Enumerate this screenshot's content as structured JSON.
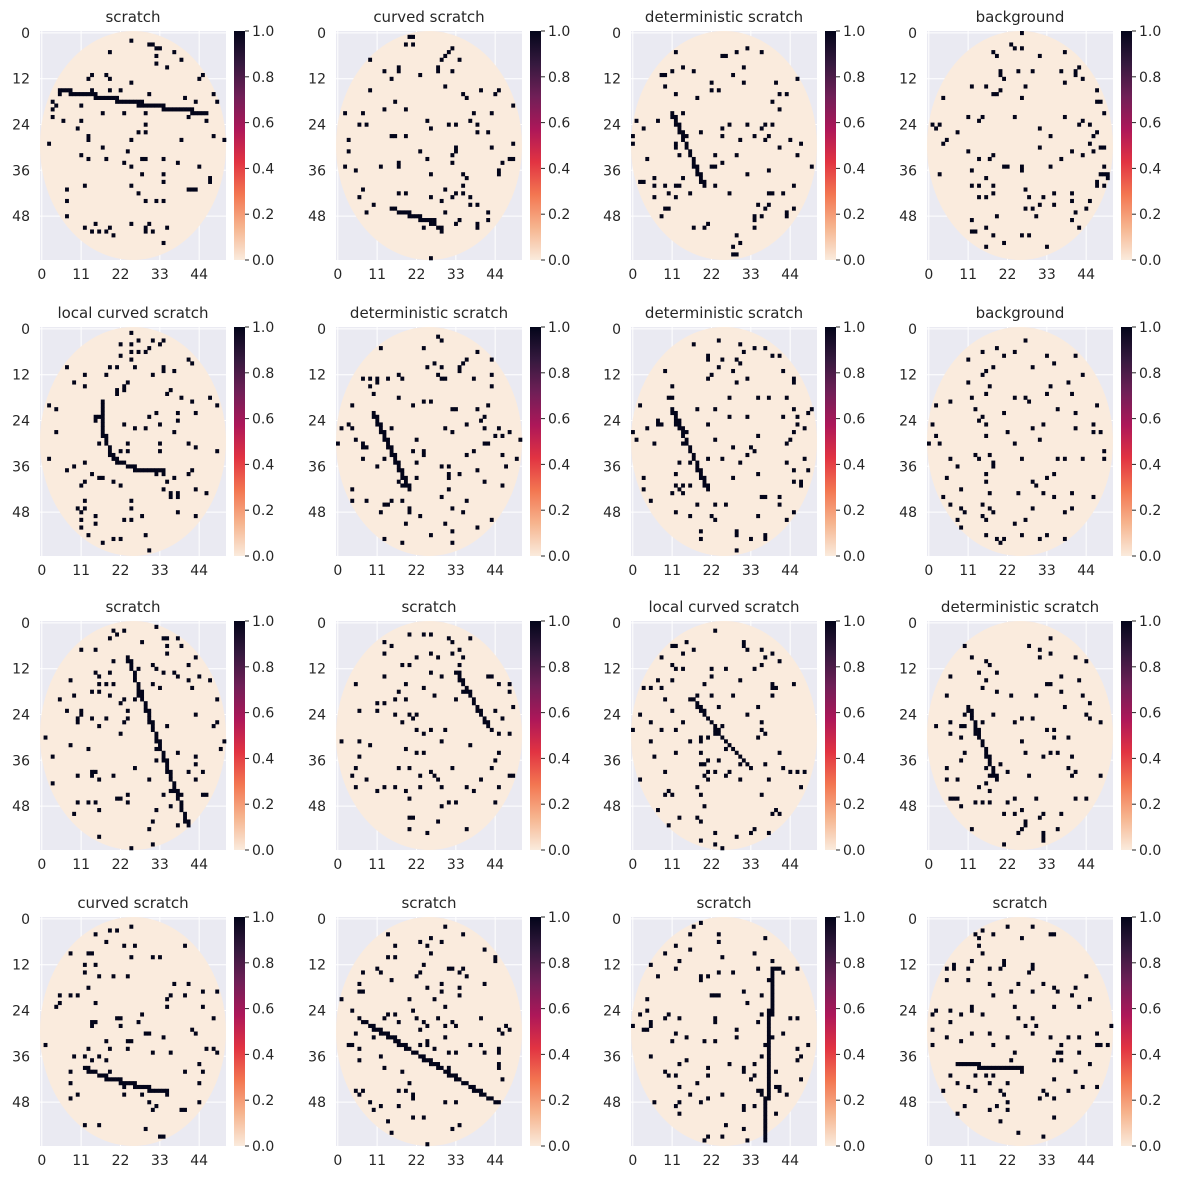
{
  "colorbar_ticks": [
    "0.0",
    "0.2",
    "0.4",
    "0.6",
    "0.8",
    "1.0"
  ],
  "colors": {
    "plot_background": "#eaeaf2",
    "grid": "#ffffff",
    "wafer": "#faebdd",
    "defect": "#03051a",
    "colormap_rocket_r": [
      "#faebdd",
      "#f6b48e",
      "#f37651",
      "#e13342",
      "#ad1759",
      "#701f57",
      "#35193e",
      "#03051a"
    ]
  },
  "chart_data": [
    {
      "type": "heatmap",
      "title": "scratch",
      "xticks": [
        "0",
        "11",
        "22",
        "33",
        "44"
      ],
      "yticks": [
        "0",
        "12",
        "24",
        "36",
        "48"
      ],
      "grid_shape": [
        60,
        52
      ],
      "value_range": [
        0,
        1
      ],
      "wafer_region": "ellipse filling the grid, value 0",
      "defect_pattern": {
        "kind": "line",
        "points": [
          [
            5,
            15
          ],
          [
            15,
            16.5
          ],
          [
            30,
            19
          ],
          [
            46,
            21
          ]
        ]
      },
      "noise_pixel_count": 95
    },
    {
      "type": "heatmap",
      "title": "curved scratch",
      "xticks": [
        "0",
        "11",
        "22",
        "33",
        "44"
      ],
      "yticks": [
        "0",
        "12",
        "24",
        "36",
        "48"
      ],
      "grid_shape": [
        60,
        52
      ],
      "value_range": [
        0,
        1
      ],
      "wafer_region": "ellipse filling the grid, value 0",
      "defect_pattern": {
        "kind": "curve",
        "points": [
          [
            15,
            46
          ],
          [
            20,
            47.5
          ],
          [
            26,
            49.5
          ],
          [
            29,
            51.5
          ]
        ]
      },
      "noise_pixel_count": 95
    },
    {
      "type": "heatmap",
      "title": "deterministic scratch",
      "xticks": [
        "0",
        "11",
        "22",
        "33",
        "44"
      ],
      "yticks": [
        "0",
        "12",
        "24",
        "36",
        "48"
      ],
      "grid_shape": [
        60,
        52
      ],
      "value_range": [
        0,
        1
      ],
      "wafer_region": "ellipse filling the grid, value 0",
      "defect_pattern": {
        "kind": "line",
        "points": [
          [
            11,
            21
          ],
          [
            20,
            40
          ]
        ]
      },
      "noise_pixel_count": 100
    },
    {
      "type": "heatmap",
      "title": "background",
      "xticks": [
        "0",
        "11",
        "22",
        "33",
        "44"
      ],
      "yticks": [
        "0",
        "12",
        "24",
        "36",
        "48"
      ],
      "grid_shape": [
        60,
        52
      ],
      "value_range": [
        0,
        1
      ],
      "wafer_region": "ellipse filling the grid, value 0",
      "defect_pattern": {
        "kind": "none",
        "points": []
      },
      "noise_pixel_count": 110
    },
    {
      "type": "heatmap",
      "title": "local curved scratch",
      "xticks": [
        "0",
        "11",
        "22",
        "33",
        "44"
      ],
      "yticks": [
        "0",
        "12",
        "24",
        "36",
        "48"
      ],
      "grid_shape": [
        60,
        52
      ],
      "value_range": [
        0,
        1
      ],
      "wafer_region": "ellipse filling the grid, value 0",
      "defect_pattern": {
        "kind": "curve",
        "points": [
          [
            17,
            20
          ],
          [
            17.5,
            28
          ],
          [
            20,
            34
          ],
          [
            26,
            36.5
          ],
          [
            34,
            37.5
          ]
        ]
      },
      "noise_pixel_count": 110
    },
    {
      "type": "heatmap",
      "title": "deterministic scratch",
      "xticks": [
        "0",
        "11",
        "22",
        "33",
        "44"
      ],
      "yticks": [
        "0",
        "12",
        "24",
        "36",
        "48"
      ],
      "grid_shape": [
        60,
        52
      ],
      "value_range": [
        0,
        1
      ],
      "wafer_region": "ellipse filling the grid, value 0",
      "defect_pattern": {
        "kind": "line",
        "points": [
          [
            10,
            22
          ],
          [
            20,
            42
          ]
        ]
      },
      "noise_pixel_count": 110
    },
    {
      "type": "heatmap",
      "title": "deterministic scratch",
      "xticks": [
        "0",
        "11",
        "22",
        "33",
        "44"
      ],
      "yticks": [
        "0",
        "12",
        "24",
        "36",
        "48"
      ],
      "grid_shape": [
        60,
        52
      ],
      "value_range": [
        0,
        1
      ],
      "wafer_region": "ellipse filling the grid, value 0",
      "defect_pattern": {
        "kind": "line",
        "points": [
          [
            11,
            21
          ],
          [
            21,
            42
          ]
        ]
      },
      "noise_pixel_count": 110
    },
    {
      "type": "heatmap",
      "title": "background",
      "xticks": [
        "0",
        "11",
        "22",
        "33",
        "44"
      ],
      "yticks": [
        "0",
        "12",
        "24",
        "36",
        "48"
      ],
      "grid_shape": [
        60,
        52
      ],
      "value_range": [
        0,
        1
      ],
      "wafer_region": "ellipse filling the grid, value 0",
      "defect_pattern": {
        "kind": "none",
        "points": []
      },
      "noise_pixel_count": 100
    },
    {
      "type": "heatmap",
      "title": "scratch",
      "xticks": [
        "0",
        "11",
        "22",
        "33",
        "44"
      ],
      "yticks": [
        "0",
        "12",
        "24",
        "36",
        "48"
      ],
      "grid_shape": [
        60,
        52
      ],
      "value_range": [
        0,
        1
      ],
      "wafer_region": "ellipse filling the grid, value 0",
      "defect_pattern": {
        "kind": "line",
        "points": [
          [
            24,
            9
          ],
          [
            41,
            53
          ]
        ]
      },
      "noise_pixel_count": 110
    },
    {
      "type": "heatmap",
      "title": "scratch",
      "xticks": [
        "0",
        "11",
        "22",
        "33",
        "44"
      ],
      "yticks": [
        "0",
        "12",
        "24",
        "36",
        "48"
      ],
      "grid_shape": [
        60,
        52
      ],
      "value_range": [
        0,
        1
      ],
      "wafer_region": "ellipse filling the grid, value 0",
      "defect_pattern": {
        "kind": "line",
        "points": [
          [
            33,
            13
          ],
          [
            43,
            28
          ]
        ]
      },
      "noise_pixel_count": 100
    },
    {
      "type": "heatmap",
      "title": "local curved scratch",
      "xticks": [
        "0",
        "11",
        "22",
        "33",
        "44"
      ],
      "yticks": [
        "0",
        "12",
        "24",
        "36",
        "48"
      ],
      "grid_shape": [
        60,
        52
      ],
      "value_range": [
        0,
        1
      ],
      "wafer_region": "ellipse filling the grid, value 0",
      "defect_pattern": {
        "kind": "curve",
        "points": [
          [
            17,
            20
          ],
          [
            21,
            25
          ],
          [
            26,
            31
          ],
          [
            33,
            38
          ]
        ]
      },
      "noise_pixel_count": 110
    },
    {
      "type": "heatmap",
      "title": "deterministic scratch",
      "xticks": [
        "0",
        "11",
        "22",
        "33",
        "44"
      ],
      "yticks": [
        "0",
        "12",
        "24",
        "36",
        "48"
      ],
      "grid_shape": [
        60,
        52
      ],
      "value_range": [
        0,
        1
      ],
      "wafer_region": "ellipse filling the grid, value 0",
      "defect_pattern": {
        "kind": "line",
        "points": [
          [
            11,
            22
          ],
          [
            19,
            41
          ]
        ]
      },
      "noise_pixel_count": 100
    },
    {
      "type": "heatmap",
      "title": "curved scratch",
      "xticks": [
        "0",
        "11",
        "22",
        "33",
        "44"
      ],
      "yticks": [
        "0",
        "12",
        "24",
        "36",
        "48"
      ],
      "grid_shape": [
        60,
        52
      ],
      "value_range": [
        0,
        1
      ],
      "wafer_region": "ellipse filling the grid, value 0",
      "defect_pattern": {
        "kind": "curve",
        "points": [
          [
            12,
            39
          ],
          [
            18,
            41.5
          ],
          [
            24,
            43
          ],
          [
            30,
            44.5
          ],
          [
            35,
            45.5
          ]
        ]
      },
      "noise_pixel_count": 90
    },
    {
      "type": "heatmap",
      "title": "scratch",
      "xticks": [
        "0",
        "11",
        "22",
        "33",
        "44"
      ],
      "yticks": [
        "0",
        "12",
        "24",
        "36",
        "48"
      ],
      "grid_shape": [
        60,
        52
      ],
      "value_range": [
        0,
        1
      ],
      "wafer_region": "ellipse filling the grid, value 0",
      "defect_pattern": {
        "kind": "line",
        "points": [
          [
            6,
            26
          ],
          [
            44,
            48
          ]
        ]
      },
      "noise_pixel_count": 110
    },
    {
      "type": "heatmap",
      "title": "scratch",
      "xticks": [
        "0",
        "11",
        "22",
        "33",
        "44"
      ],
      "yticks": [
        "0",
        "12",
        "24",
        "36",
        "48"
      ],
      "grid_shape": [
        60,
        52
      ],
      "value_range": [
        0,
        1
      ],
      "wafer_region": "ellipse filling the grid, value 0",
      "defect_pattern": {
        "kind": "line",
        "points": [
          [
            39,
            13
          ],
          [
            37,
            58
          ]
        ]
      },
      "noise_pixel_count": 110
    },
    {
      "type": "heatmap",
      "title": "scratch",
      "xticks": [
        "0",
        "11",
        "22",
        "33",
        "44"
      ],
      "yticks": [
        "0",
        "12",
        "24",
        "36",
        "48"
      ],
      "grid_shape": [
        60,
        52
      ],
      "value_range": [
        0,
        1
      ],
      "wafer_region": "ellipse filling the grid, value 0",
      "defect_pattern": {
        "kind": "line",
        "points": [
          [
            8,
            38
          ],
          [
            26,
            39.5
          ]
        ]
      },
      "noise_pixel_count": 110
    }
  ]
}
